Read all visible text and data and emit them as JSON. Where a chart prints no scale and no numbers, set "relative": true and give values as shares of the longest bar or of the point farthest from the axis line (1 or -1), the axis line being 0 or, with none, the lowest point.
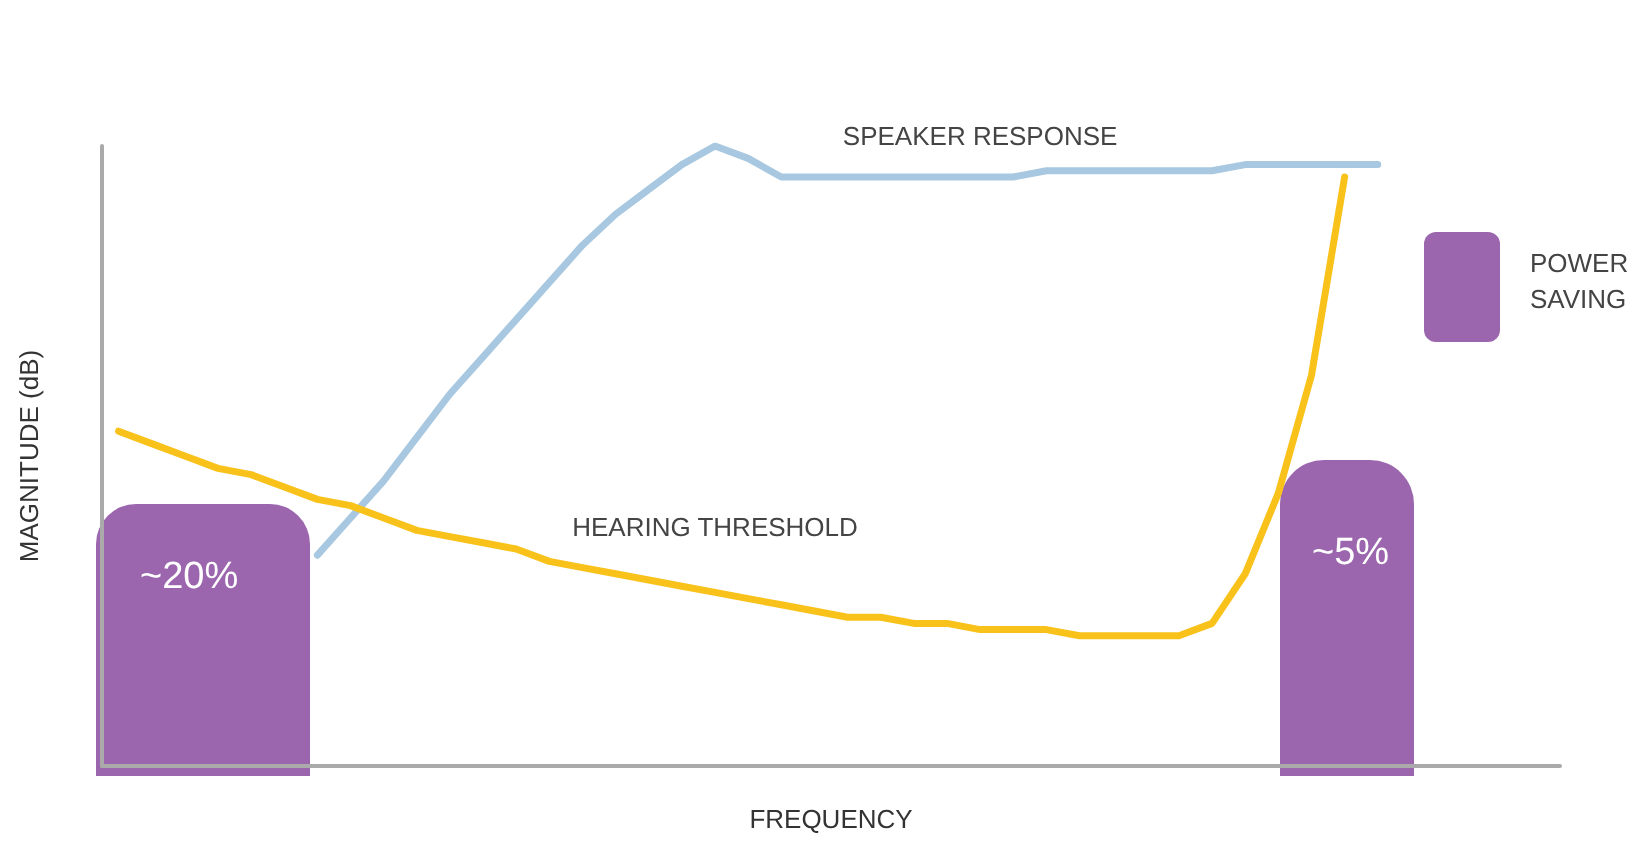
{
  "chart_data": {
    "type": "line",
    "relative": true,
    "xlabel": "FREQUENCY",
    "ylabel": "MAGNITUDE (dB)",
    "grid": false,
    "marker": "none",
    "line_style": "solid",
    "annotations": [
      "~20%",
      "~5%",
      "POWER SAVING"
    ],
    "categories": [
      null,
      null,
      null,
      null,
      null,
      null,
      null,
      null,
      null,
      null,
      null,
      null,
      null,
      null,
      null,
      null,
      null,
      null,
      null,
      null,
      null,
      null,
      null,
      null,
      null,
      null,
      null,
      null,
      null,
      null,
      null,
      null,
      null,
      null,
      null,
      null,
      null,
      null,
      null,
      null,
      null,
      null,
      null,
      null
    ],
    "series": [
      {
        "name": "SPEAKER RESPONSE",
        "color": "#a7c8e0",
        "values": [
          null,
          null,
          null,
          null,
          null,
          null,
          0.34,
          0.4,
          0.46,
          0.53,
          0.6,
          0.66,
          0.72,
          0.78,
          0.84,
          0.89,
          0.93,
          0.97,
          1.0,
          0.98,
          0.95,
          0.95,
          0.95,
          0.95,
          0.95,
          0.95,
          0.95,
          0.95,
          0.96,
          0.96,
          0.96,
          0.96,
          0.96,
          0.96,
          0.97,
          0.97,
          0.97,
          0.97,
          0.97,
          null,
          null,
          null,
          null,
          null
        ]
      },
      {
        "name": "HEARING THRESHOLD",
        "color": "#f9c21b",
        "values": [
          0.54,
          0.52,
          0.5,
          0.48,
          0.47,
          0.45,
          0.43,
          0.42,
          0.4,
          0.38,
          0.37,
          0.36,
          0.35,
          0.33,
          0.32,
          0.31,
          0.3,
          0.29,
          0.28,
          0.27,
          0.26,
          0.25,
          0.24,
          0.24,
          0.23,
          0.23,
          0.22,
          0.22,
          0.22,
          0.21,
          0.21,
          0.21,
          0.21,
          0.23,
          0.31,
          0.44,
          0.63,
          0.95,
          null,
          null,
          null,
          null,
          null,
          null
        ]
      }
    ]
  }
}
